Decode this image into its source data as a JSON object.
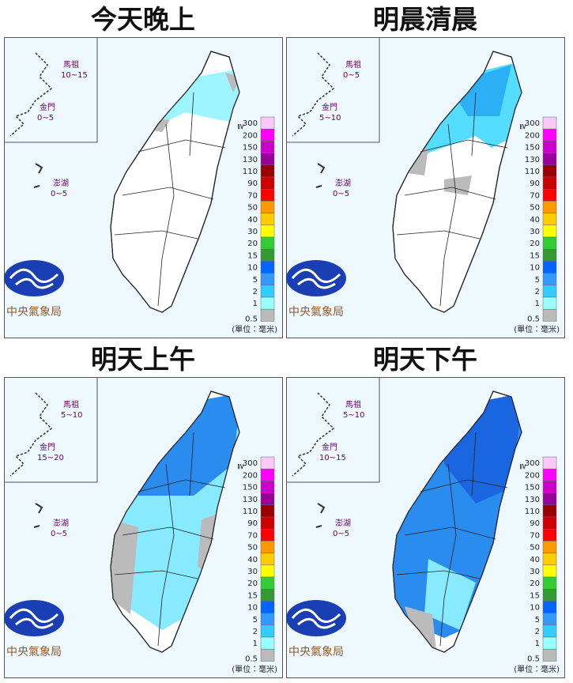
{
  "panels": [
    {
      "title": "今天晚上",
      "islands": [
        {
          "name": "馬祖",
          "range": "10~15"
        },
        {
          "name": "金門",
          "range": "0~5"
        },
        {
          "name": "澎湖",
          "range": "0~5"
        }
      ]
    },
    {
      "title": "明晨清晨",
      "islands": [
        {
          "name": "馬祖",
          "range": "0~5"
        },
        {
          "name": "金門",
          "range": "5~10"
        },
        {
          "name": "澎湖",
          "range": "0~5"
        }
      ]
    },
    {
      "title": "明天上午",
      "islands": [
        {
          "name": "馬祖",
          "range": "5~10"
        },
        {
          "name": "金門",
          "range": "15~20"
        },
        {
          "name": "澎湖",
          "range": "0~5"
        }
      ]
    },
    {
      "title": "明天下午",
      "islands": [
        {
          "name": "馬祖",
          "range": "5~10"
        },
        {
          "name": "金門",
          "range": "10~15"
        },
        {
          "name": "澎湖",
          "range": "0~5"
        }
      ]
    }
  ],
  "legend": {
    "symbol": "≧",
    "labels": [
      "300",
      "200",
      "150",
      "130",
      "110",
      "90",
      "70",
      "50",
      "40",
      "30",
      "20",
      "15",
      "10",
      "5",
      "2",
      "1",
      "0.5"
    ],
    "colors": [
      "#fbc8f7",
      "#ff00ff",
      "#cc00cc",
      "#990099",
      "#990000",
      "#cc0000",
      "#ff0000",
      "#ff9900",
      "#ffcc00",
      "#ffff00",
      "#33cc33",
      "#339933",
      "#0066ff",
      "#3399ff",
      "#33ccff",
      "#99ffff",
      "#bbbbbb"
    ]
  },
  "unit": "(單位：毫米)",
  "logo": "中央氣象局"
}
